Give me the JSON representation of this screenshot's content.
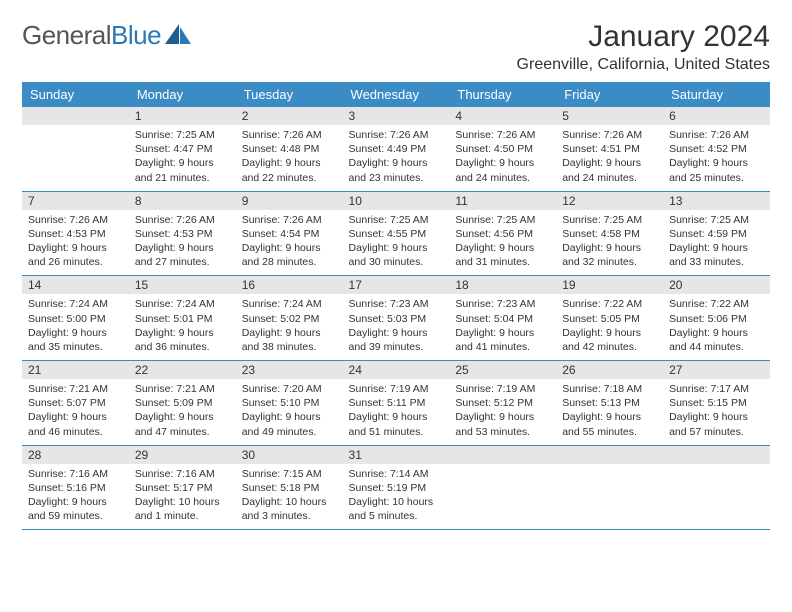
{
  "logo": {
    "word1": "General",
    "word2": "Blue"
  },
  "title": "January 2024",
  "location": "Greenville, California, United States",
  "colors": {
    "header_bg": "#3b8bc4",
    "header_text": "#ffffff",
    "daynum_bg": "#e6e6e6",
    "row_border": "#3b8bc4",
    "logo_blue": "#2a7ab8",
    "body_text": "#333333",
    "page_bg": "#ffffff"
  },
  "typography": {
    "month_title_size": 30,
    "location_size": 16,
    "dayhead_size": 13,
    "daynum_size": 12,
    "info_size": 10.5
  },
  "day_headers": [
    "Sunday",
    "Monday",
    "Tuesday",
    "Wednesday",
    "Thursday",
    "Friday",
    "Saturday"
  ],
  "weeks": [
    [
      {
        "day": "",
        "sunrise": "",
        "sunset": "",
        "daylight": ""
      },
      {
        "day": "1",
        "sunrise": "Sunrise: 7:25 AM",
        "sunset": "Sunset: 4:47 PM",
        "daylight": "Daylight: 9 hours and 21 minutes."
      },
      {
        "day": "2",
        "sunrise": "Sunrise: 7:26 AM",
        "sunset": "Sunset: 4:48 PM",
        "daylight": "Daylight: 9 hours and 22 minutes."
      },
      {
        "day": "3",
        "sunrise": "Sunrise: 7:26 AM",
        "sunset": "Sunset: 4:49 PM",
        "daylight": "Daylight: 9 hours and 23 minutes."
      },
      {
        "day": "4",
        "sunrise": "Sunrise: 7:26 AM",
        "sunset": "Sunset: 4:50 PM",
        "daylight": "Daylight: 9 hours and 24 minutes."
      },
      {
        "day": "5",
        "sunrise": "Sunrise: 7:26 AM",
        "sunset": "Sunset: 4:51 PM",
        "daylight": "Daylight: 9 hours and 24 minutes."
      },
      {
        "day": "6",
        "sunrise": "Sunrise: 7:26 AM",
        "sunset": "Sunset: 4:52 PM",
        "daylight": "Daylight: 9 hours and 25 minutes."
      }
    ],
    [
      {
        "day": "7",
        "sunrise": "Sunrise: 7:26 AM",
        "sunset": "Sunset: 4:53 PM",
        "daylight": "Daylight: 9 hours and 26 minutes."
      },
      {
        "day": "8",
        "sunrise": "Sunrise: 7:26 AM",
        "sunset": "Sunset: 4:53 PM",
        "daylight": "Daylight: 9 hours and 27 minutes."
      },
      {
        "day": "9",
        "sunrise": "Sunrise: 7:26 AM",
        "sunset": "Sunset: 4:54 PM",
        "daylight": "Daylight: 9 hours and 28 minutes."
      },
      {
        "day": "10",
        "sunrise": "Sunrise: 7:25 AM",
        "sunset": "Sunset: 4:55 PM",
        "daylight": "Daylight: 9 hours and 30 minutes."
      },
      {
        "day": "11",
        "sunrise": "Sunrise: 7:25 AM",
        "sunset": "Sunset: 4:56 PM",
        "daylight": "Daylight: 9 hours and 31 minutes."
      },
      {
        "day": "12",
        "sunrise": "Sunrise: 7:25 AM",
        "sunset": "Sunset: 4:58 PM",
        "daylight": "Daylight: 9 hours and 32 minutes."
      },
      {
        "day": "13",
        "sunrise": "Sunrise: 7:25 AM",
        "sunset": "Sunset: 4:59 PM",
        "daylight": "Daylight: 9 hours and 33 minutes."
      }
    ],
    [
      {
        "day": "14",
        "sunrise": "Sunrise: 7:24 AM",
        "sunset": "Sunset: 5:00 PM",
        "daylight": "Daylight: 9 hours and 35 minutes."
      },
      {
        "day": "15",
        "sunrise": "Sunrise: 7:24 AM",
        "sunset": "Sunset: 5:01 PM",
        "daylight": "Daylight: 9 hours and 36 minutes."
      },
      {
        "day": "16",
        "sunrise": "Sunrise: 7:24 AM",
        "sunset": "Sunset: 5:02 PM",
        "daylight": "Daylight: 9 hours and 38 minutes."
      },
      {
        "day": "17",
        "sunrise": "Sunrise: 7:23 AM",
        "sunset": "Sunset: 5:03 PM",
        "daylight": "Daylight: 9 hours and 39 minutes."
      },
      {
        "day": "18",
        "sunrise": "Sunrise: 7:23 AM",
        "sunset": "Sunset: 5:04 PM",
        "daylight": "Daylight: 9 hours and 41 minutes."
      },
      {
        "day": "19",
        "sunrise": "Sunrise: 7:22 AM",
        "sunset": "Sunset: 5:05 PM",
        "daylight": "Daylight: 9 hours and 42 minutes."
      },
      {
        "day": "20",
        "sunrise": "Sunrise: 7:22 AM",
        "sunset": "Sunset: 5:06 PM",
        "daylight": "Daylight: 9 hours and 44 minutes."
      }
    ],
    [
      {
        "day": "21",
        "sunrise": "Sunrise: 7:21 AM",
        "sunset": "Sunset: 5:07 PM",
        "daylight": "Daylight: 9 hours and 46 minutes."
      },
      {
        "day": "22",
        "sunrise": "Sunrise: 7:21 AM",
        "sunset": "Sunset: 5:09 PM",
        "daylight": "Daylight: 9 hours and 47 minutes."
      },
      {
        "day": "23",
        "sunrise": "Sunrise: 7:20 AM",
        "sunset": "Sunset: 5:10 PM",
        "daylight": "Daylight: 9 hours and 49 minutes."
      },
      {
        "day": "24",
        "sunrise": "Sunrise: 7:19 AM",
        "sunset": "Sunset: 5:11 PM",
        "daylight": "Daylight: 9 hours and 51 minutes."
      },
      {
        "day": "25",
        "sunrise": "Sunrise: 7:19 AM",
        "sunset": "Sunset: 5:12 PM",
        "daylight": "Daylight: 9 hours and 53 minutes."
      },
      {
        "day": "26",
        "sunrise": "Sunrise: 7:18 AM",
        "sunset": "Sunset: 5:13 PM",
        "daylight": "Daylight: 9 hours and 55 minutes."
      },
      {
        "day": "27",
        "sunrise": "Sunrise: 7:17 AM",
        "sunset": "Sunset: 5:15 PM",
        "daylight": "Daylight: 9 hours and 57 minutes."
      }
    ],
    [
      {
        "day": "28",
        "sunrise": "Sunrise: 7:16 AM",
        "sunset": "Sunset: 5:16 PM",
        "daylight": "Daylight: 9 hours and 59 minutes."
      },
      {
        "day": "29",
        "sunrise": "Sunrise: 7:16 AM",
        "sunset": "Sunset: 5:17 PM",
        "daylight": "Daylight: 10 hours and 1 minute."
      },
      {
        "day": "30",
        "sunrise": "Sunrise: 7:15 AM",
        "sunset": "Sunset: 5:18 PM",
        "daylight": "Daylight: 10 hours and 3 minutes."
      },
      {
        "day": "31",
        "sunrise": "Sunrise: 7:14 AM",
        "sunset": "Sunset: 5:19 PM",
        "daylight": "Daylight: 10 hours and 5 minutes."
      },
      {
        "day": "",
        "sunrise": "",
        "sunset": "",
        "daylight": ""
      },
      {
        "day": "",
        "sunrise": "",
        "sunset": "",
        "daylight": ""
      },
      {
        "day": "",
        "sunrise": "",
        "sunset": "",
        "daylight": ""
      }
    ]
  ]
}
